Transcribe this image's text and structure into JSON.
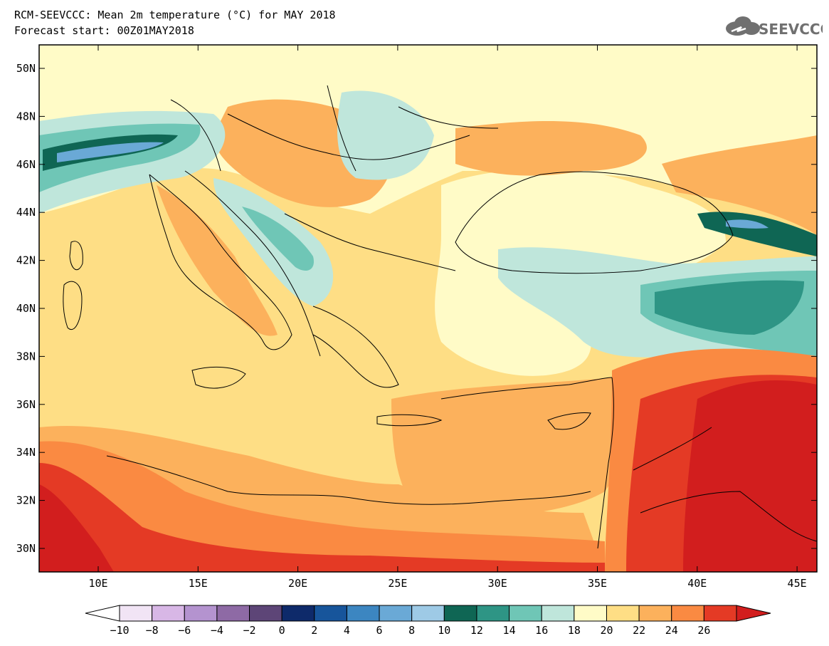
{
  "header": {
    "title_line1": "RCM-SEEVCCC: Mean 2m temperature (°C) for MAY 2018",
    "title_line2": "Forecast start: 00Z01MAY2018"
  },
  "logo": {
    "text": "SEEVCCC",
    "icon": "cloud-icon"
  },
  "axes": {
    "lat_labels": [
      "50N",
      "48N",
      "46N",
      "44N",
      "42N",
      "40N",
      "38N",
      "36N",
      "34N",
      "32N",
      "30N"
    ],
    "lon_labels": [
      "10E",
      "15E",
      "20E",
      "25E",
      "30E",
      "35E",
      "40E",
      "45E"
    ]
  },
  "colorbar": {
    "labels": [
      "−10",
      "−8",
      "−6",
      "−4",
      "−2",
      "0",
      "2",
      "4",
      "6",
      "8",
      "10",
      "12",
      "14",
      "16",
      "18",
      "20",
      "22",
      "24",
      "26"
    ],
    "colors": [
      "#f1e4f5",
      "#d8b7e6",
      "#b493cf",
      "#8e6aa5",
      "#5d4577",
      "#0e2a6a",
      "#17559b",
      "#3c86c1",
      "#6aa9d6",
      "#9ecae6",
      "#0f6654",
      "#2e9585",
      "#6fc6b6",
      "#bfe6db",
      "#fffbc7",
      "#fede85",
      "#fcb15c",
      "#fa8a42",
      "#e43a25"
    ],
    "over_color": "#d21e1e",
    "under_color": "#ffffff"
  },
  "map_colors": {
    "sea": "#fede85",
    "cool": "#fffbc7",
    "warm": "#fcb15c",
    "hot": "#fa8a42",
    "hotter": "#e43a25",
    "hottest": "#d21e1e",
    "teal_light": "#bfe6db",
    "teal_mid": "#6fc6b6",
    "teal_dark": "#2e9585",
    "teal_deep": "#0f6654",
    "blue": "#6aa9d6"
  }
}
